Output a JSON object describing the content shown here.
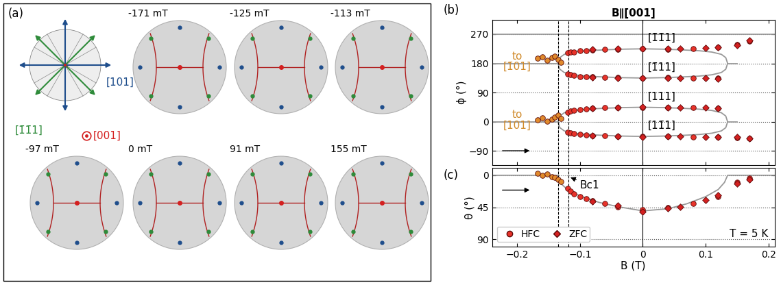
{
  "figure": {
    "panel_a": {
      "label": "(a)",
      "legend_labels": [
        {
          "text": "[101]",
          "color": "#1f4e8c"
        },
        {
          "text": "[1̄1̄1]",
          "color": "#2e8b3a"
        },
        {
          "text": "[001]",
          "color": "#d42020"
        }
      ],
      "images": [
        "-171 mT",
        "-125 mT",
        "-113 mT",
        "-97 mT",
        "0 mT",
        "91 mT",
        "155 mT"
      ]
    }
  },
  "chart_data": [
    {
      "type": "scatter",
      "panel_label": "(b)",
      "title": "B∥[001]",
      "y_label": "ϕ (°)",
      "xlim": [
        -0.24,
        0.21
      ],
      "xticks": [
        {
          "value": -0.2,
          "label": "−0.2"
        },
        {
          "value": -0.1,
          "label": "−0.1"
        },
        0,
        0.1,
        0.2
      ],
      "ylim": [
        -134,
        314
      ],
      "yticks": [
        {
          "value": -90,
          "label": "−90"
        },
        0,
        90,
        180,
        270
      ],
      "tick_labels": "y",
      "grid": true,
      "lines": [
        {
          "color": "#999999",
          "x": [
            -0.24,
            0.21
          ],
          "y": [
            270,
            270
          ]
        },
        {
          "color": "#999999",
          "x": [
            -0.24,
            -0.135
          ],
          "y": [
            180,
            180
          ]
        },
        {
          "color": "#999999",
          "x": [
            0.135,
            0.15
          ],
          "y": [
            180,
            180
          ]
        },
        {
          "color": "#999999",
          "x": [
            -0.24,
            -0.135
          ],
          "y": [
            0,
            0
          ]
        },
        {
          "color": "#999999",
          "x": [
            0.135,
            0.15
          ],
          "y": [
            0,
            0
          ]
        },
        {
          "color": "#999999",
          "x": [
            -0.135,
            -0.132,
            -0.125,
            -0.11,
            -0.09,
            -0.06,
            -0.03,
            0,
            0.03,
            0.06,
            0.09,
            0.11,
            0.125,
            0.132,
            0.135,
            0.132,
            0.125,
            0.11,
            0.09,
            0.06,
            0.03,
            0,
            -0.03,
            -0.06,
            -0.09,
            -0.11,
            -0.125,
            -0.132,
            -0.135
          ],
          "y": [
            0,
            18,
            28,
            35,
            39,
            42,
            44,
            45,
            44,
            42,
            39,
            35,
            28,
            18,
            0,
            -18,
            -28,
            -35,
            -39,
            -42,
            -44,
            -45,
            -44,
            -42,
            -39,
            -35,
            -28,
            -18,
            0
          ]
        },
        {
          "color": "#999999",
          "x": [
            -0.135,
            -0.132,
            -0.125,
            -0.11,
            -0.09,
            -0.06,
            -0.03,
            0,
            0.03,
            0.06,
            0.09,
            0.11,
            0.125,
            0.132,
            0.135,
            0.132,
            0.125,
            0.11,
            0.09,
            0.06,
            0.03,
            0,
            -0.03,
            -0.06,
            -0.09,
            -0.11,
            -0.125,
            -0.132,
            -0.135
          ],
          "y": [
            180,
            198,
            208,
            215,
            219,
            222,
            224,
            225,
            224,
            222,
            219,
            215,
            208,
            198,
            180,
            162,
            152,
            145,
            141,
            138,
            136,
            135,
            136,
            138,
            141,
            145,
            152,
            162,
            180
          ]
        }
      ],
      "vlines": [
        {
          "x": -0.135,
          "line_style": "dashed"
        },
        {
          "x": -0.118,
          "line_style": "dashed"
        },
        {
          "x": 0,
          "line_style": "solid"
        }
      ],
      "series": [
        {
          "color": "#e08a2c",
          "marker": "circle",
          "x": [
            -0.168,
            -0.16,
            -0.152,
            -0.145,
            -0.14,
            -0.135,
            -0.13,
            -0.168,
            -0.16,
            -0.152,
            -0.145,
            -0.14,
            -0.135,
            -0.13
          ],
          "y": [
            195,
            200,
            190,
            198,
            203,
            192,
            183,
            5,
            12,
            2,
            8,
            15,
            20,
            10
          ]
        },
        {
          "name": "HFC",
          "color": "#e8332a",
          "marker": "circle",
          "x": [
            -0.12,
            -0.12,
            -0.12,
            -0.12,
            -0.115,
            -0.115,
            -0.115,
            -0.115,
            -0.11,
            -0.11,
            -0.11,
            -0.11,
            -0.1,
            -0.1,
            -0.1,
            -0.1,
            -0.09,
            -0.09,
            -0.09,
            -0.09,
            -0.08,
            -0.08,
            -0.08,
            -0.08,
            -0.06,
            -0.06,
            -0.06,
            -0.06,
            -0.04,
            -0.04,
            -0.04,
            -0.04,
            0,
            0,
            0,
            0,
            0.04,
            0.04,
            0.04,
            0.04,
            0.08,
            0.08,
            0.08,
            0.08,
            0.12,
            0.12,
            0.12,
            0.12,
            0.15,
            0.15,
            0.17,
            0.17
          ],
          "y": [
            212,
            148,
            30,
            -32,
            214,
            146,
            33,
            -34,
            216,
            143,
            35,
            -36,
            219,
            140,
            38,
            -39,
            220,
            139,
            40,
            -40,
            222,
            138,
            41,
            -42,
            223,
            137,
            43,
            -43,
            224,
            136,
            44,
            -44,
            225,
            135,
            45,
            -45,
            224,
            136,
            44,
            -44,
            226,
            135,
            44,
            -46,
            230,
            134,
            42,
            -47,
            238,
            -48,
            248,
            -50
          ]
        },
        {
          "name": "ZFC",
          "color": "#d42020",
          "marker": "diamond",
          "x": [
            -0.08,
            -0.08,
            -0.08,
            -0.08,
            -0.04,
            -0.04,
            -0.04,
            -0.04,
            0,
            0,
            0,
            0,
            0.04,
            0.04,
            0.04,
            0.04,
            0.06,
            0.06,
            0.06,
            0.06,
            0.1,
            0.1,
            0.1,
            0.1,
            0.12,
            0.12,
            0.12,
            0.12,
            0.15,
            0.15,
            0.17,
            0.17
          ],
          "y": [
            223,
            137,
            42,
            -43,
            225,
            135,
            44,
            -45,
            226,
            134,
            46,
            -46,
            225,
            135,
            45,
            -45,
            225,
            134,
            45,
            -45,
            227,
            134,
            43,
            -46,
            229,
            133,
            41,
            -47,
            236,
            -47,
            250,
            -52
          ]
        }
      ],
      "annotations": [
        {
          "text": "[1̄1̄1]",
          "x": 0.008,
          "y": 258
        },
        {
          "text": "[1̄11]",
          "x": 0.008,
          "y": 168
        },
        {
          "text": "[111]",
          "x": 0.008,
          "y": 78
        },
        {
          "text": "[11̄1]",
          "x": 0.008,
          "y": -12
        },
        {
          "text": "to\n[1̄01]",
          "x": -0.2,
          "y": 185,
          "color": "#d08a2a"
        },
        {
          "text": "to\n[101]",
          "x": -0.2,
          "y": 5,
          "color": "#d08a2a"
        }
      ]
    },
    {
      "type": "scatter",
      "panel_label": "(c)",
      "x_label": "B (T)",
      "y_label": "θ (°)",
      "xlim": [
        -0.24,
        0.21
      ],
      "xticks": [
        {
          "value": -0.2,
          "label": "−0.2"
        },
        {
          "value": -0.1,
          "label": "−0.1"
        },
        0,
        0.1,
        0.2
      ],
      "ylim": [
        100,
        -10
      ],
      "yticks": [
        0,
        45,
        90
      ],
      "grid": true,
      "legend": "lower left",
      "lines": [
        {
          "color": "#999999",
          "x": [
            -0.24,
            -0.135,
            -0.13,
            -0.12,
            -0.1,
            -0.07,
            -0.04,
            0,
            0.04,
            0.07,
            0.1,
            0.12,
            0.13,
            0.135,
            0.21
          ],
          "y": [
            0,
            0,
            12,
            20,
            29,
            38,
            44,
            50,
            47,
            40,
            30,
            20,
            10,
            0,
            0
          ]
        }
      ],
      "vlines": [
        {
          "x": -0.135,
          "line_style": "dashed"
        },
        {
          "x": -0.118,
          "line_style": "dashed"
        },
        {
          "x": 0,
          "line_style": "solid"
        }
      ],
      "series": [
        {
          "color": "#e08a2c",
          "marker": "circle",
          "x": [
            -0.168,
            -0.16,
            -0.152,
            -0.145,
            -0.14,
            -0.135,
            -0.13
          ],
          "y": [
            -3,
            0,
            -2,
            2,
            3,
            6,
            9
          ]
        },
        {
          "name": "HFC",
          "color": "#e8332a",
          "marker": "circle",
          "x": [
            -0.12,
            -0.115,
            -0.11,
            -0.1,
            -0.09,
            -0.08,
            -0.06,
            -0.04,
            0,
            0.04,
            0.08,
            0.12,
            0.15,
            0.17
          ],
          "y": [
            18,
            22,
            26,
            30,
            33,
            36,
            40,
            44,
            48,
            45,
            40,
            30,
            10,
            4
          ]
        },
        {
          "name": "ZFC",
          "color": "#d42020",
          "marker": "diamond",
          "x": [
            -0.08,
            -0.04,
            0,
            0.04,
            0.06,
            0.1,
            0.12,
            0.15,
            0.17
          ],
          "y": [
            37,
            42,
            51,
            46,
            44,
            35,
            28,
            12,
            6
          ]
        }
      ],
      "annotations": [
        {
          "text": "Bc1",
          "x": -0.1,
          "y": 14,
          "arrow_x": -0.118,
          "arrow_y": 2
        },
        {
          "text": "T = 5 K",
          "x": 0.2,
          "y": 82
        }
      ]
    }
  ]
}
